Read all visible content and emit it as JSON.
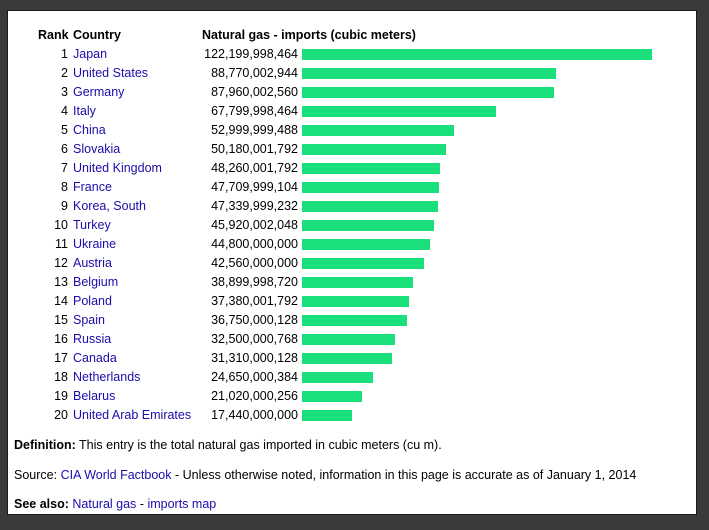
{
  "header": {
    "rank": "Rank",
    "country": "Country",
    "value": "Natural gas - imports (cubic meters)"
  },
  "chart_data": {
    "type": "bar",
    "orientation": "horizontal",
    "title": "Natural gas - imports (cubic meters)",
    "xlabel": "Natural gas - imports (cubic meters)",
    "ylabel": "Country",
    "categories": [
      "Japan",
      "United States",
      "Germany",
      "Italy",
      "China",
      "Slovakia",
      "United Kingdom",
      "France",
      "Korea, South",
      "Turkey",
      "Ukraine",
      "Austria",
      "Belgium",
      "Poland",
      "Spain",
      "Russia",
      "Canada",
      "Netherlands",
      "Belarus",
      "United Arab Emirates"
    ],
    "values": [
      122199998464,
      88770002944,
      87960002560,
      67799998464,
      52999999488,
      50180001792,
      48260001792,
      47709999104,
      47339999232,
      45920002048,
      44800000000,
      42560000000,
      38899998720,
      37380001792,
      36750000128,
      32500000768,
      31310000128,
      24650000384,
      21020000256,
      17440000000
    ],
    "rows": [
      {
        "rank": "1",
        "country": "Japan",
        "value": "122,199,998,464"
      },
      {
        "rank": "2",
        "country": "United States",
        "value": "88,770,002,944"
      },
      {
        "rank": "3",
        "country": "Germany",
        "value": "87,960,002,560"
      },
      {
        "rank": "4",
        "country": "Italy",
        "value": "67,799,998,464"
      },
      {
        "rank": "5",
        "country": "China",
        "value": "52,999,999,488"
      },
      {
        "rank": "6",
        "country": "Slovakia",
        "value": "50,180,001,792"
      },
      {
        "rank": "7",
        "country": "United Kingdom",
        "value": "48,260,001,792"
      },
      {
        "rank": "8",
        "country": "France",
        "value": "47,709,999,104"
      },
      {
        "rank": "9",
        "country": "Korea, South",
        "value": "47,339,999,232"
      },
      {
        "rank": "10",
        "country": "Turkey",
        "value": "45,920,002,048"
      },
      {
        "rank": "11",
        "country": "Ukraine",
        "value": "44,800,000,000"
      },
      {
        "rank": "12",
        "country": "Austria",
        "value": "42,560,000,000"
      },
      {
        "rank": "13",
        "country": "Belgium",
        "value": "38,899,998,720"
      },
      {
        "rank": "14",
        "country": "Poland",
        "value": "37,380,001,792"
      },
      {
        "rank": "15",
        "country": "Spain",
        "value": "36,750,000,128"
      },
      {
        "rank": "16",
        "country": "Russia",
        "value": "32,500,000,768"
      },
      {
        "rank": "17",
        "country": "Canada",
        "value": "31,310,000,128"
      },
      {
        "rank": "18",
        "country": "Netherlands",
        "value": "24,650,000,384"
      },
      {
        "rank": "19",
        "country": "Belarus",
        "value": "21,020,000,256"
      },
      {
        "rank": "20",
        "country": "United Arab Emirates",
        "value": "17,440,000,000"
      }
    ],
    "xlim": [
      0,
      122199998464
    ],
    "bar_color": "#19e07a"
  },
  "definition": {
    "label": "Definition:",
    "text": "This entry is the total natural gas imported in cubic meters (cu m)."
  },
  "source": {
    "label": "Source:",
    "link": "CIA World Factbook",
    "text": "- Unless otherwise noted, information in this page is accurate as of January 1, 2014"
  },
  "see_also": {
    "label": "See also:",
    "link1": "Natural gas",
    "separator": "-",
    "link2": "imports map"
  },
  "colors": {
    "link": "#1a0dab",
    "bar": "#19e07a",
    "background": "#ffffff"
  }
}
